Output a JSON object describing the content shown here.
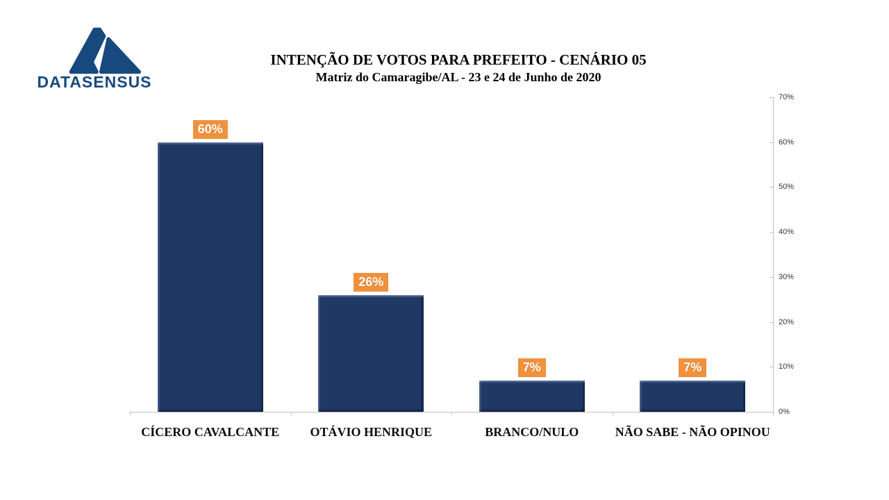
{
  "logo": {
    "brand": "DATASENSUS",
    "icon": "datasensus-triangle-logo",
    "color": "#17497E"
  },
  "header": {
    "title": "INTENÇÃO DE VOTOS PARA PREFEITO - CENÁRIO 05",
    "subtitle": "Matriz do Camaragibe/AL - 23 e 24 de  Junho de 2020"
  },
  "chart_data": {
    "type": "bar",
    "title": "INTENÇÃO DE VOTOS PARA PREFEITO - CENÁRIO 05",
    "subtitle": "Matriz do Camaragibe/AL - 23 e 24 de  Junho de 2020",
    "categories": [
      "CÍCERO CAVALCANTE",
      "OTÁVIO HENRIQUE",
      "BRANCO/NULO",
      "NÃO SABE - NÃO OPINOU"
    ],
    "values": [
      60,
      26,
      7,
      7
    ],
    "data_labels": [
      "60%",
      "26%",
      "7%",
      "7%"
    ],
    "xlabel": "",
    "ylabel": "",
    "y_axis": {
      "side": "right",
      "min": 0,
      "max": 70,
      "step": 10,
      "tick_labels": [
        "0%",
        "10%",
        "20%",
        "30%",
        "40%",
        "50%",
        "60%",
        "70%"
      ]
    },
    "grid": false,
    "legend": "none",
    "colors": {
      "bar": "#1F3864",
      "data_label_background": "#F0913D",
      "data_label_text": "#FFFFFF",
      "axis_line": "#BFBFBF",
      "axis_text": "#333333",
      "title_text": "#000000"
    }
  }
}
